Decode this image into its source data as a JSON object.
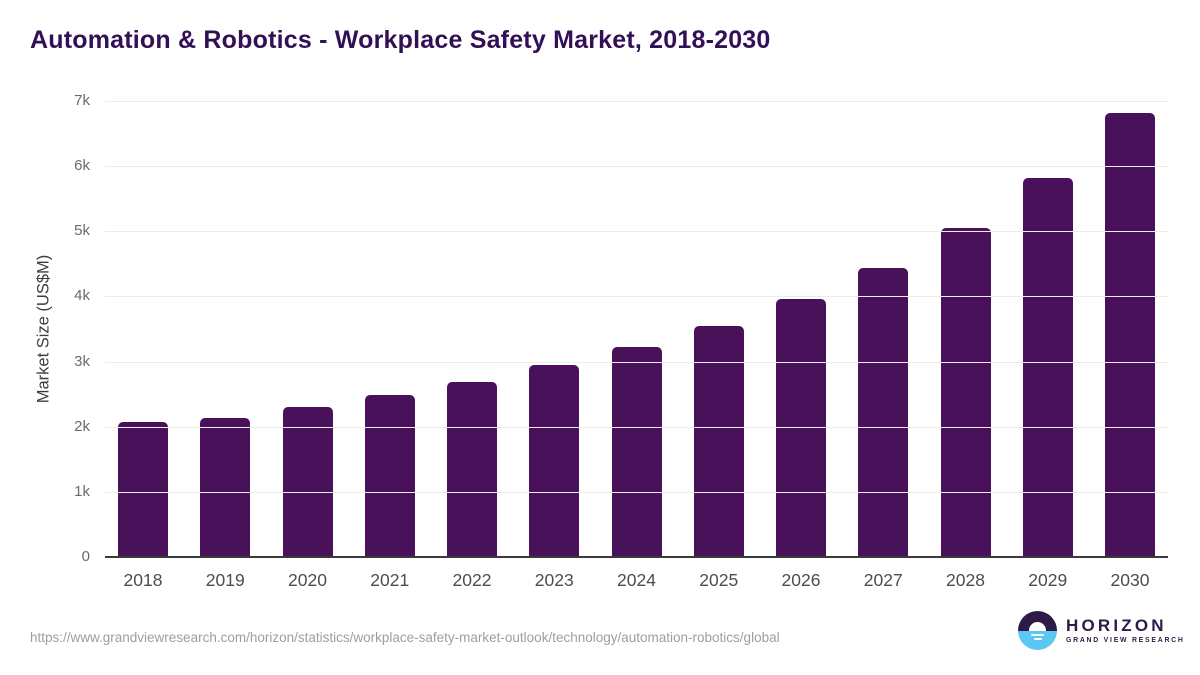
{
  "title": "Automation & Robotics - Workplace Safety Market, 2018-2030",
  "chart_data": {
    "type": "bar",
    "title": "Automation & Robotics - Workplace Safety Market, 2018-2030",
    "categories": [
      "2018",
      "2019",
      "2020",
      "2021",
      "2022",
      "2023",
      "2024",
      "2025",
      "2026",
      "2027",
      "2028",
      "2029",
      "2030"
    ],
    "values": [
      2070,
      2130,
      2300,
      2480,
      2690,
      2940,
      3230,
      3540,
      3960,
      4440,
      5050,
      5820,
      6820
    ],
    "xlabel": "",
    "ylabel": "Market Size (US$M)",
    "ylim": [
      0,
      7000
    ],
    "yticks": [
      {
        "v": 0,
        "label": "0"
      },
      {
        "v": 1000,
        "label": "1k"
      },
      {
        "v": 2000,
        "label": "2k"
      },
      {
        "v": 3000,
        "label": "3k"
      },
      {
        "v": 4000,
        "label": "4k"
      },
      {
        "v": 5000,
        "label": "5k"
      },
      {
        "v": 6000,
        "label": "6k"
      },
      {
        "v": 7000,
        "label": "7k"
      }
    ],
    "grid": true,
    "legend": "none",
    "bar_color": "#481159"
  },
  "footer": {
    "source_url": "https://www.grandviewresearch.com/horizon/statistics/workplace-safety-market-outlook/technology/automation-robotics/global",
    "logo": {
      "wordmark": "HORIZON",
      "subtitle": "GRAND VIEW RESEARCH"
    }
  },
  "colors": {
    "page_bg": "#ffffff",
    "title": "#331055",
    "bar": "#481159",
    "grid": "#ececec",
    "axis_line": "#3a3a3a",
    "axis_title": "#3d3d3d",
    "tick": "#6b6b6b",
    "xtick": "#4d4d4d",
    "url": "#9e9e9e",
    "logo_dark": "#2e1a47",
    "logo_blue": "#5bc8f3"
  }
}
